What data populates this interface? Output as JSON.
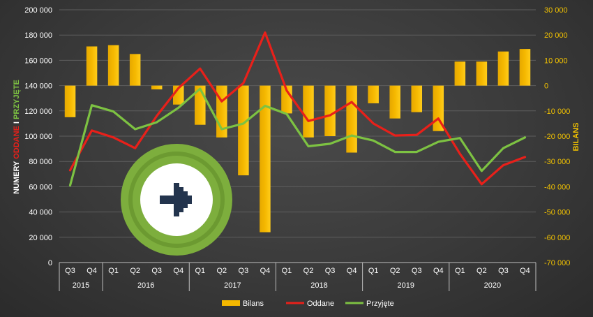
{
  "chart_data": {
    "type": "bar+line",
    "categories": [
      "Q3",
      "Q4",
      "Q1",
      "Q2",
      "Q3",
      "Q4",
      "Q1",
      "Q2",
      "Q3",
      "Q4",
      "Q1",
      "Q2",
      "Q3",
      "Q4",
      "Q1",
      "Q2",
      "Q3",
      "Q4",
      "Q1",
      "Q2",
      "Q3",
      "Q4"
    ],
    "years": [
      {
        "label": "2015",
        "span": 2
      },
      {
        "label": "2016",
        "span": 4
      },
      {
        "label": "2017",
        "span": 4
      },
      {
        "label": "2018",
        "span": 4
      },
      {
        "label": "2019",
        "span": 4
      },
      {
        "label": "2020",
        "span": 4
      }
    ],
    "left_axis": {
      "title_parts": [
        {
          "text": "NUMERY ",
          "color": "#ffffff"
        },
        {
          "text": "ODDANE",
          "color": "#e8201a"
        },
        {
          "text": " I ",
          "color": "#ffffff"
        },
        {
          "text": "PRZYJĘTE",
          "color": "#7dc242"
        }
      ],
      "ylim": [
        0,
        200000
      ],
      "ticks": [
        "0",
        "20 000",
        "40 000",
        "60 000",
        "80 000",
        "100 000",
        "120 000",
        "140 000",
        "160 000",
        "180 000",
        "200 000"
      ]
    },
    "right_axis": {
      "title": "BILANS",
      "ylim": [
        -70000,
        30000
      ],
      "ticks": [
        "-70 000",
        "-60 000",
        "-50 000",
        "-40 000",
        "-30 000",
        "-20 000",
        "-10 000",
        "0",
        "10 000",
        "20 000",
        "30 000"
      ]
    },
    "series": [
      {
        "name": "Bilans",
        "type": "bar",
        "axis": "right",
        "color": "#f5b800",
        "values": [
          -12500,
          15500,
          16000,
          12500,
          -1500,
          -7500,
          -15500,
          -20500,
          -35500,
          -58000,
          -11000,
          -20500,
          -20000,
          -26500,
          -7000,
          -13000,
          -10500,
          -18000,
          9500,
          9500,
          13500,
          14500
        ]
      },
      {
        "name": "Oddane",
        "type": "line",
        "axis": "left",
        "color": "#e8201a",
        "values": [
          73000,
          104500,
          99000,
          90500,
          116000,
          138000,
          153500,
          127500,
          142000,
          182000,
          136000,
          112000,
          116500,
          127000,
          110000,
          100500,
          101000,
          114000,
          86000,
          62000,
          77000,
          83500
        ]
      },
      {
        "name": "Przyjęte",
        "type": "line",
        "axis": "left",
        "color": "#7dc242",
        "values": [
          61000,
          124500,
          119500,
          105500,
          111000,
          122500,
          137500,
          105500,
          110000,
          124000,
          117500,
          92000,
          94000,
          100500,
          96500,
          87500,
          87500,
          95500,
          98500,
          72500,
          90500,
          99000
        ]
      }
    ],
    "legend": {
      "position": "bottom",
      "items": [
        "Bilans",
        "Oddane",
        "Przyjęte"
      ]
    },
    "grid": true
  },
  "overlay": {
    "icon": "arrow-right-icon",
    "ring_color": "#7dae3d",
    "arrow_color": "#23344d"
  }
}
